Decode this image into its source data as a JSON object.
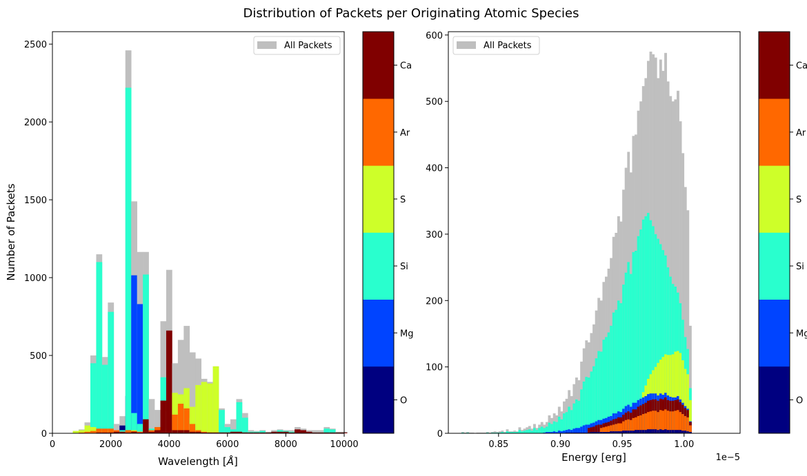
{
  "figure": {
    "title": "Distribution of Packets per Originating Atomic Species"
  },
  "legend_label": "All Packets",
  "colors": {
    "all_packets": "#bfbfbf",
    "O": "#000080",
    "Mg": "#0044ff",
    "Si": "#29ffce",
    "S": "#ceff29",
    "Ar": "#ff6800",
    "Ca": "#800000"
  },
  "chart_data": [
    {
      "type": "bar",
      "title": "",
      "xlabel": "Wavelength [$\\AA$]",
      "ylabel": "Number of Packets",
      "xlim": [
        0,
        10000
      ],
      "ylim": [
        0,
        2580
      ],
      "xticks": [
        "0",
        "2000",
        "4000",
        "6000",
        "8000",
        "10000"
      ],
      "yticks": [
        "0",
        "500",
        "1000",
        "1500",
        "2000",
        "2500"
      ],
      "legend": "upper right",
      "bin_width": 200,
      "bins": [
        700,
        900,
        1100,
        1300,
        1500,
        1700,
        1900,
        2100,
        2300,
        2500,
        2700,
        2900,
        3100,
        3300,
        3500,
        3700,
        3900,
        4100,
        4300,
        4500,
        4700,
        4900,
        5100,
        5300,
        5500,
        5700,
        5900,
        6100,
        6300,
        6500,
        6700,
        6900,
        7100,
        7300,
        7500,
        7700,
        7900,
        8100,
        8300,
        8500,
        8700,
        8900,
        9100,
        9300,
        9500,
        9700,
        9900
      ],
      "series": [
        {
          "name": "All Packets",
          "values": [
            15,
            25,
            70,
            500,
            1150,
            490,
            840,
            60,
            110,
            2460,
            1490,
            1165,
            1165,
            220,
            150,
            720,
            1050,
            450,
            600,
            690,
            520,
            480,
            350,
            330,
            430,
            160,
            60,
            90,
            220,
            130,
            20,
            15,
            20,
            10,
            20,
            25,
            20,
            20,
            40,
            30,
            20,
            20,
            20,
            40,
            30,
            10,
            10
          ]
        },
        {
          "name": "O",
          "values": [
            0,
            0,
            0,
            0,
            0,
            0,
            0,
            0,
            50,
            240,
            10,
            10,
            5,
            5,
            10,
            10,
            10,
            15,
            20,
            20,
            15,
            5,
            5,
            0,
            5,
            0,
            0,
            0,
            0,
            0,
            0,
            0,
            0,
            0,
            0,
            0,
            0,
            0,
            0,
            0,
            0,
            0,
            0,
            0,
            0,
            0,
            0
          ]
        },
        {
          "name": "Mg",
          "values": [
            0,
            0,
            0,
            0,
            0,
            0,
            0,
            0,
            5,
            10,
            1015,
            830,
            20,
            5,
            5,
            10,
            5,
            5,
            10,
            10,
            5,
            5,
            5,
            0,
            0,
            0,
            0,
            0,
            0,
            0,
            0,
            0,
            0,
            0,
            0,
            0,
            0,
            0,
            0,
            0,
            0,
            0,
            0,
            0,
            0,
            0,
            0
          ]
        },
        {
          "name": "Si",
          "values": [
            0,
            0,
            10,
            450,
            1100,
            440,
            780,
            10,
            20,
            2220,
            130,
            60,
            1020,
            30,
            40,
            360,
            140,
            20,
            100,
            200,
            100,
            60,
            20,
            10,
            10,
            150,
            40,
            25,
            200,
            100,
            10,
            10,
            15,
            5,
            10,
            20,
            15,
            10,
            5,
            10,
            5,
            5,
            5,
            30,
            25,
            5,
            5
          ]
        },
        {
          "name": "S",
          "values": [
            15,
            20,
            50,
            40,
            20,
            20,
            20,
            5,
            10,
            10,
            20,
            10,
            20,
            10,
            20,
            20,
            30,
            260,
            250,
            290,
            170,
            310,
            330,
            320,
            430,
            0,
            0,
            0,
            0,
            0,
            0,
            0,
            0,
            0,
            0,
            0,
            0,
            0,
            0,
            0,
            0,
            0,
            0,
            0,
            0,
            0,
            0
          ]
        },
        {
          "name": "Ar",
          "values": [
            0,
            5,
            10,
            15,
            30,
            30,
            30,
            20,
            10,
            20,
            15,
            10,
            30,
            20,
            40,
            100,
            200,
            120,
            190,
            160,
            60,
            20,
            10,
            5,
            5,
            5,
            5,
            5,
            5,
            5,
            0,
            0,
            0,
            0,
            0,
            0,
            0,
            0,
            0,
            0,
            0,
            0,
            0,
            0,
            0,
            0,
            0
          ]
        },
        {
          "name": "Ca",
          "values": [
            0,
            0,
            0,
            0,
            5,
            5,
            5,
            10,
            10,
            5,
            10,
            5,
            90,
            10,
            20,
            210,
            660,
            20,
            20,
            20,
            10,
            10,
            5,
            5,
            5,
            5,
            5,
            10,
            10,
            5,
            5,
            5,
            5,
            5,
            10,
            10,
            10,
            5,
            25,
            20,
            10,
            5,
            5,
            5,
            5,
            5,
            5
          ]
        }
      ],
      "colorbar": {
        "labels": [
          "O",
          "Mg",
          "Si",
          "S",
          "Ar",
          "Ca"
        ]
      }
    },
    {
      "type": "bar",
      "title": "",
      "xlabel": "Energy [erg]",
      "ylabel": "",
      "x_offset_text": "1e−5",
      "xlim": [
        0.8094,
        1.0453
      ],
      "ylim": [
        0,
        605
      ],
      "xticks": [
        "0.85",
        "0.90",
        "0.95",
        "1.00"
      ],
      "yticks": [
        "0",
        "100",
        "200",
        "300",
        "400",
        "500",
        "600"
      ],
      "legend": "upper left",
      "bin_width": 0.002,
      "bin_start": 0.82,
      "all_packets": [
        2,
        1,
        2,
        1,
        1,
        0,
        1,
        1,
        1,
        1,
        2,
        1,
        2,
        3,
        2,
        3,
        4,
        2,
        6,
        3,
        3,
        4,
        3,
        9,
        5,
        7,
        9,
        11,
        7,
        14,
        8,
        13,
        17,
        13,
        17,
        27,
        23,
        30,
        27,
        40,
        33,
        48,
        52,
        65,
        56,
        74,
        84,
        80,
        108,
        128,
        140,
        137,
        151,
        164,
        185,
        204,
        200,
        228,
        236,
        248,
        264,
        296,
        302,
        327,
        319,
        367,
        400,
        424,
        393,
        448,
        450,
        486,
        500,
        523,
        535,
        561,
        575,
        571,
        566,
        535,
        563,
        546,
        573,
        530,
        508,
        500,
        503,
        516,
        470,
        422,
        371,
        336,
        162
      ],
      "si_values": [
        1,
        0,
        1,
        0,
        0,
        0,
        0,
        0,
        0,
        0,
        1,
        0,
        1,
        1,
        1,
        1,
        2,
        1,
        3,
        2,
        2,
        2,
        2,
        5,
        3,
        4,
        5,
        6,
        4,
        8,
        5,
        8,
        10,
        8,
        10,
        16,
        14,
        18,
        17,
        25,
        21,
        30,
        32,
        40,
        35,
        45,
        51,
        49,
        66,
        78,
        85,
        84,
        93,
        101,
        113,
        124,
        123,
        141,
        145,
        152,
        162,
        182,
        186,
        200,
        196,
        224,
        242,
        258,
        240,
        273,
        275,
        297,
        307,
        322,
        327,
        332,
        321,
        312,
        300,
        293,
        285,
        276,
        268,
        250,
        236,
        225,
        221,
        212,
        196,
        171,
        145,
        127,
        68
      ],
      "s_values": [
        0,
        0,
        0,
        0,
        0,
        0,
        0,
        0,
        0,
        0,
        0,
        0,
        0,
        0,
        0,
        0,
        0,
        0,
        0,
        0,
        0,
        0,
        0,
        0,
        0,
        0,
        0,
        0,
        0,
        0,
        0,
        0,
        0,
        0,
        0,
        0,
        0,
        0,
        0,
        0,
        0,
        0,
        0,
        0,
        0,
        0,
        0,
        0,
        0,
        0,
        0,
        0,
        0,
        0,
        0,
        0,
        0,
        0,
        0,
        0,
        0,
        0,
        0,
        0,
        0,
        0,
        0,
        0,
        0,
        0,
        0,
        0,
        0,
        0,
        0,
        0,
        0,
        0,
        0,
        0,
        0,
        0,
        0,
        0,
        0,
        0,
        0,
        0,
        0,
        0,
        0,
        0,
        0
      ],
      "mg_values": [
        0,
        0,
        0,
        0,
        0,
        0,
        0,
        0,
        0,
        0,
        0,
        0,
        0,
        0,
        0,
        0,
        0,
        0,
        0,
        0,
        0,
        0,
        0,
        0,
        0,
        0,
        0,
        0,
        0,
        0,
        0,
        0,
        0,
        0,
        0,
        0,
        0,
        0,
        0,
        0,
        0,
        0,
        0,
        0,
        0,
        0,
        0,
        0,
        0,
        0,
        0,
        0,
        0,
        0,
        0,
        0,
        0,
        0,
        0,
        0,
        0,
        0,
        0,
        0,
        0,
        0,
        0,
        0,
        0,
        0,
        0,
        0,
        0,
        0,
        0,
        0,
        0,
        0,
        0,
        0,
        0,
        0,
        0,
        0,
        0,
        0,
        0,
        0,
        0,
        0,
        0,
        0,
        0
      ],
      "ar_values": [
        0,
        0,
        0,
        0,
        0,
        0,
        0,
        0,
        0,
        0,
        0,
        0,
        0,
        0,
        0,
        0,
        0,
        0,
        0,
        0,
        0,
        0,
        0,
        0,
        0,
        0,
        0,
        0,
        0,
        0,
        0,
        0,
        0,
        0,
        0,
        0,
        0,
        0,
        0,
        0,
        0,
        0,
        0,
        0,
        0,
        0,
        0,
        0,
        0,
        0,
        0,
        0,
        0,
        0,
        0,
        0,
        0,
        0,
        0,
        0,
        0,
        0,
        0,
        0,
        0,
        0,
        0,
        0,
        0,
        0,
        0,
        0,
        0,
        0,
        0,
        0,
        0,
        0,
        0,
        0,
        0,
        0,
        0,
        0,
        0,
        0,
        0,
        0,
        0,
        0,
        0,
        0,
        0
      ],
      "ca_values": [
        0,
        0,
        0,
        0,
        0,
        0,
        0,
        0,
        0,
        0,
        0,
        0,
        0,
        0,
        0,
        0,
        0,
        0,
        0,
        0,
        0,
        0,
        0,
        0,
        0,
        0,
        0,
        0,
        0,
        0,
        0,
        0,
        0,
        0,
        0,
        0,
        0,
        0,
        0,
        0,
        0,
        0,
        0,
        0,
        0,
        0,
        0,
        0,
        0,
        0,
        0,
        0,
        0,
        0,
        0,
        0,
        0,
        0,
        0,
        0,
        0,
        0,
        0,
        0,
        0,
        0,
        0,
        0,
        0,
        0,
        0,
        0,
        0,
        0,
        0,
        0,
        0,
        0,
        0,
        0,
        0,
        0,
        0,
        0,
        0,
        0,
        0,
        0,
        0,
        0,
        0,
        0,
        0
      ],
      "o_values": [
        0,
        0,
        0,
        0,
        0,
        0,
        0,
        0,
        0,
        0,
        0,
        0,
        0,
        0,
        0,
        0,
        0,
        0,
        0,
        0,
        0,
        0,
        0,
        0,
        0,
        0,
        0,
        0,
        0,
        0,
        0,
        0,
        0,
        0,
        0,
        0,
        0,
        0,
        0,
        0,
        0,
        0,
        0,
        0,
        0,
        0,
        0,
        0,
        0,
        0,
        0,
        0,
        0,
        0,
        0,
        0,
        0,
        0,
        0,
        0,
        0,
        0,
        0,
        0,
        0,
        0,
        0,
        0,
        0,
        0,
        0,
        0,
        0,
        0,
        0,
        0,
        0,
        0,
        0,
        0,
        0,
        0,
        0,
        0,
        0,
        0,
        0,
        0,
        0,
        0,
        0,
        0,
        0
      ],
      "colorbar": {
        "labels": [
          "O",
          "Mg",
          "Si",
          "S",
          "Ar",
          "Ca"
        ]
      }
    }
  ]
}
